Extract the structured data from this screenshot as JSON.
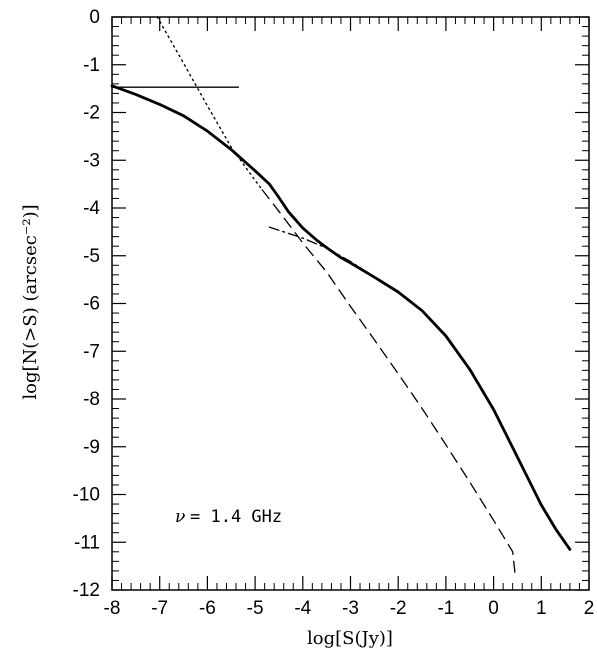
{
  "chart_data": {
    "type": "line",
    "title": "",
    "xlabel": "log[S(Jy)]",
    "ylabel": "log[N(>S) (arcsec⁻²)]",
    "xlim": [
      -8,
      2
    ],
    "ylim": [
      -12,
      0
    ],
    "xticks": [
      "-8",
      "-7",
      "-6",
      "-5",
      "-4",
      "-3",
      "-2",
      "-1",
      "0",
      "1",
      "2"
    ],
    "yticks": [
      "0",
      "-1",
      "-2",
      "-3",
      "-4",
      "-5",
      "-6",
      "-7",
      "-8",
      "-9",
      "-10",
      "-11",
      "-12"
    ],
    "annotation": {
      "prefix": "ν",
      "text": "= 1.4 GHz",
      "x": -6.75,
      "y": -10.4
    },
    "series": [
      {
        "style": "solid-thick",
        "points": [
          [
            -8,
            -1.44
          ],
          [
            -7.5,
            -1.62
          ],
          [
            -7,
            -1.83
          ],
          [
            -6.5,
            -2.07
          ],
          [
            -6,
            -2.39
          ],
          [
            -5.5,
            -2.78
          ],
          [
            -5,
            -3.22
          ],
          [
            -4.7,
            -3.5
          ],
          [
            -4.5,
            -3.78
          ],
          [
            -4.3,
            -4.08
          ],
          [
            -4,
            -4.42
          ],
          [
            -3.7,
            -4.68
          ],
          [
            -3.5,
            -4.83
          ],
          [
            -3.2,
            -5.04
          ],
          [
            -3,
            -5.15
          ],
          [
            -2.5,
            -5.45
          ],
          [
            -2,
            -5.76
          ],
          [
            -1.5,
            -6.15
          ],
          [
            -1,
            -6.68
          ],
          [
            -0.5,
            -7.38
          ],
          [
            0,
            -8.22
          ],
          [
            0.5,
            -9.22
          ],
          [
            1,
            -10.22
          ],
          [
            1.3,
            -10.72
          ],
          [
            1.6,
            -11.15
          ]
        ]
      },
      {
        "style": "solid-thin",
        "points": [
          [
            -8,
            -1.47
          ],
          [
            -5.35,
            -1.47
          ]
        ]
      },
      {
        "style": "dotted",
        "points": [
          [
            -7.05,
            0
          ],
          [
            -6.5,
            -0.97
          ],
          [
            -6,
            -1.86
          ],
          [
            -5.5,
            -2.73
          ],
          [
            -5,
            -3.42
          ],
          [
            -4.85,
            -3.62
          ]
        ]
      },
      {
        "style": "dashed",
        "points": [
          [
            -4.85,
            -3.62
          ],
          [
            -4.5,
            -4.07
          ],
          [
            -4,
            -4.73
          ],
          [
            -3.5,
            -5.34
          ],
          [
            -3,
            -6.06
          ],
          [
            -2.5,
            -6.76
          ],
          [
            -2,
            -7.47
          ],
          [
            -1.5,
            -8.2
          ],
          [
            -1,
            -8.96
          ],
          [
            -0.5,
            -9.74
          ],
          [
            0,
            -10.54
          ],
          [
            0.4,
            -11.2
          ],
          [
            0.45,
            -11.67
          ]
        ]
      },
      {
        "style": "dash-dot",
        "points": [
          [
            -4.7,
            -4.4
          ],
          [
            -4,
            -4.63
          ],
          [
            -3.5,
            -4.84
          ],
          [
            -3,
            -5.12
          ],
          [
            -2.75,
            -5.28
          ]
        ]
      }
    ]
  }
}
